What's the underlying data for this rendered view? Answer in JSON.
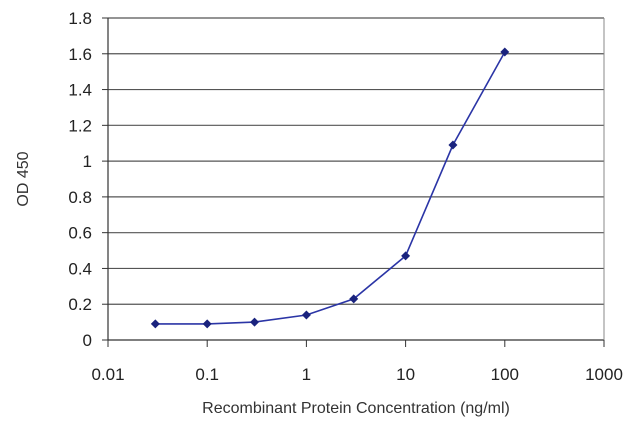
{
  "chart_data": {
    "type": "line",
    "xscale": "log",
    "x": [
      0.03,
      0.1,
      0.3,
      1,
      3,
      10,
      30,
      100
    ],
    "series": [
      {
        "values": [
          0.09,
          0.09,
          0.1,
          0.14,
          0.23,
          0.47,
          1.09,
          1.61
        ]
      }
    ],
    "xlabel": "Recombinant Protein Concentration (ng/ml)",
    "ylabel": "OD 450",
    "xlim": [
      0.01,
      1000
    ],
    "ylim": [
      0,
      1.8
    ],
    "xticks": [
      "0.01",
      "0.1",
      "1",
      "10",
      "100",
      "1000"
    ],
    "yticks": [
      "0",
      "0.2",
      "0.4",
      "0.6",
      "0.8",
      "1",
      "1.2",
      "1.4",
      "1.6",
      "1.8"
    ],
    "grid": "horizontal",
    "legend": "none",
    "colors": {
      "series": "#2b35a6",
      "marker": "#1a237e",
      "grid": "#555555",
      "plot_bg": "#ffffff"
    }
  }
}
